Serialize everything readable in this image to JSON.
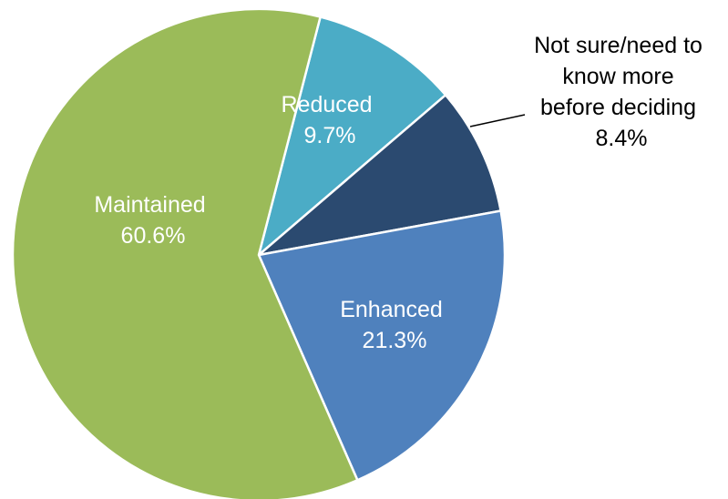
{
  "chart_data": {
    "type": "pie",
    "slices": [
      {
        "label": "Reduced",
        "value": 9.7,
        "value_label": "9.7%",
        "color": "#4bacc6",
        "label_color": "#ffffff"
      },
      {
        "label": "Not sure/need to know more before deciding",
        "label_lines": [
          "Not sure/need to",
          "know more",
          "before deciding"
        ],
        "value": 8.4,
        "value_label": "8.4%",
        "color": "#2b4a70",
        "label_color": "#000000"
      },
      {
        "label": "Enhanced",
        "value": 21.3,
        "value_label": "21.3%",
        "color": "#4f81bd",
        "label_color": "#ffffff"
      },
      {
        "label": "Maintained",
        "value": 60.6,
        "value_label": "60.6%",
        "color": "#9bbb59",
        "label_color": "#ffffff"
      }
    ]
  }
}
